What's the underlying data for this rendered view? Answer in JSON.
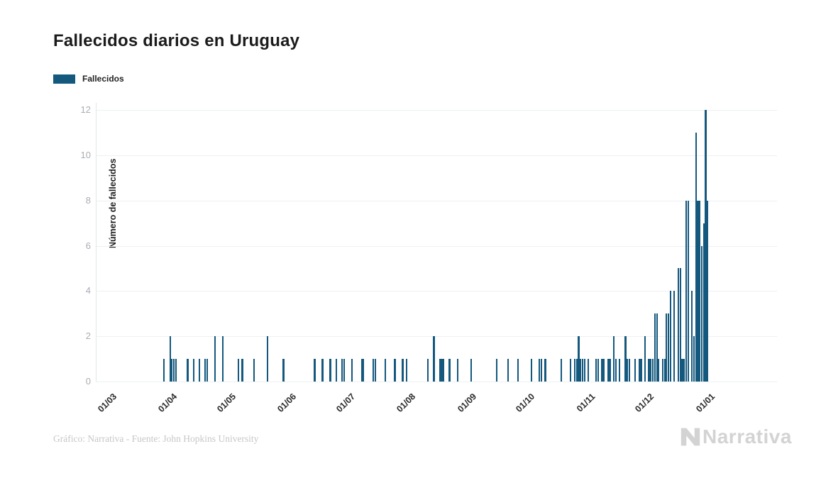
{
  "header": {
    "title": "Fallecidos diarios en Uruguay"
  },
  "legend": {
    "items": [
      {
        "label": "Fallecidos",
        "color": "#14587E"
      }
    ]
  },
  "footer": {
    "credit": "Gráfico: Narrativa - Fuente: John Hopkins University",
    "brand": "Narrativa",
    "brand_color": "#d3d3d3"
  },
  "chart_data": {
    "type": "bar",
    "title": "Fallecidos diarios en Uruguay",
    "series_name": "Fallecidos",
    "xlabel": "",
    "ylabel": "Número de fallecidos",
    "bar_color": "#14587E",
    "grid": "horizontal",
    "ylim": [
      0,
      12
    ],
    "y_ticks": [
      0,
      2,
      4,
      6,
      8,
      10,
      12
    ],
    "x_tick_labels": [
      "01/03",
      "01/04",
      "01/05",
      "01/06",
      "01/07",
      "01/08",
      "01/09",
      "01/10",
      "01/11",
      "01/12",
      "01/01"
    ],
    "x_tick_dates": [
      "2020-03-01",
      "2020-04-01",
      "2020-05-01",
      "2020-06-01",
      "2020-07-01",
      "2020-08-01",
      "2020-09-01",
      "2020-10-01",
      "2020-11-01",
      "2020-12-01",
      "2021-01-01"
    ],
    "note": "Daily COVID-19 deaths in Uruguay; days not listed have value 0",
    "points": [
      {
        "date": "2020-03-28",
        "value": 1
      },
      {
        "date": "2020-03-31",
        "value": 2
      },
      {
        "date": "2020-04-01",
        "value": 1
      },
      {
        "date": "2020-04-02",
        "value": 1
      },
      {
        "date": "2020-04-03",
        "value": 1
      },
      {
        "date": "2020-04-09",
        "value": 1
      },
      {
        "date": "2020-04-12",
        "value": 1
      },
      {
        "date": "2020-04-15",
        "value": 1
      },
      {
        "date": "2020-04-18",
        "value": 1
      },
      {
        "date": "2020-04-19",
        "value": 1
      },
      {
        "date": "2020-04-23",
        "value": 2
      },
      {
        "date": "2020-04-27",
        "value": 2
      },
      {
        "date": "2020-05-05",
        "value": 1
      },
      {
        "date": "2020-05-07",
        "value": 1
      },
      {
        "date": "2020-05-13",
        "value": 1
      },
      {
        "date": "2020-05-20",
        "value": 2
      },
      {
        "date": "2020-05-28",
        "value": 1
      },
      {
        "date": "2020-06-13",
        "value": 1
      },
      {
        "date": "2020-06-17",
        "value": 1
      },
      {
        "date": "2020-06-21",
        "value": 1
      },
      {
        "date": "2020-06-24",
        "value": 1
      },
      {
        "date": "2020-06-27",
        "value": 1
      },
      {
        "date": "2020-06-28",
        "value": 1
      },
      {
        "date": "2020-07-02",
        "value": 1
      },
      {
        "date": "2020-07-07",
        "value": 1
      },
      {
        "date": "2020-07-08",
        "value": 1
      },
      {
        "date": "2020-07-13",
        "value": 1
      },
      {
        "date": "2020-07-14",
        "value": 1
      },
      {
        "date": "2020-07-19",
        "value": 1
      },
      {
        "date": "2020-07-24",
        "value": 1
      },
      {
        "date": "2020-07-28",
        "value": 1
      },
      {
        "date": "2020-07-30",
        "value": 1
      },
      {
        "date": "2020-08-10",
        "value": 1
      },
      {
        "date": "2020-08-13",
        "value": 2
      },
      {
        "date": "2020-08-16",
        "value": 1
      },
      {
        "date": "2020-08-17",
        "value": 1
      },
      {
        "date": "2020-08-18",
        "value": 1
      },
      {
        "date": "2020-08-21",
        "value": 1
      },
      {
        "date": "2020-08-25",
        "value": 1
      },
      {
        "date": "2020-09-01",
        "value": 1
      },
      {
        "date": "2020-09-14",
        "value": 1
      },
      {
        "date": "2020-09-20",
        "value": 1
      },
      {
        "date": "2020-09-25",
        "value": 1
      },
      {
        "date": "2020-10-02",
        "value": 1
      },
      {
        "date": "2020-10-06",
        "value": 1
      },
      {
        "date": "2020-10-07",
        "value": 1
      },
      {
        "date": "2020-10-09",
        "value": 1
      },
      {
        "date": "2020-10-17",
        "value": 1
      },
      {
        "date": "2020-10-22",
        "value": 1
      },
      {
        "date": "2020-10-24",
        "value": 1
      },
      {
        "date": "2020-10-25",
        "value": 1
      },
      {
        "date": "2020-10-26",
        "value": 2
      },
      {
        "date": "2020-10-27",
        "value": 1
      },
      {
        "date": "2020-10-28",
        "value": 1
      },
      {
        "date": "2020-10-29",
        "value": 1
      },
      {
        "date": "2020-10-31",
        "value": 1
      },
      {
        "date": "2020-11-04",
        "value": 1
      },
      {
        "date": "2020-11-05",
        "value": 1
      },
      {
        "date": "2020-11-07",
        "value": 1
      },
      {
        "date": "2020-11-08",
        "value": 1
      },
      {
        "date": "2020-11-10",
        "value": 1
      },
      {
        "date": "2020-11-11",
        "value": 1
      },
      {
        "date": "2020-11-13",
        "value": 2
      },
      {
        "date": "2020-11-14",
        "value": 1
      },
      {
        "date": "2020-11-16",
        "value": 1
      },
      {
        "date": "2020-11-19",
        "value": 2
      },
      {
        "date": "2020-11-20",
        "value": 1
      },
      {
        "date": "2020-11-21",
        "value": 1
      },
      {
        "date": "2020-11-24",
        "value": 1
      },
      {
        "date": "2020-11-26",
        "value": 1
      },
      {
        "date": "2020-11-27",
        "value": 1
      },
      {
        "date": "2020-11-29",
        "value": 2
      },
      {
        "date": "2020-12-01",
        "value": 1
      },
      {
        "date": "2020-12-02",
        "value": 1
      },
      {
        "date": "2020-12-03",
        "value": 1
      },
      {
        "date": "2020-12-04",
        "value": 3
      },
      {
        "date": "2020-12-05",
        "value": 3
      },
      {
        "date": "2020-12-06",
        "value": 1
      },
      {
        "date": "2020-12-08",
        "value": 1
      },
      {
        "date": "2020-12-09",
        "value": 1
      },
      {
        "date": "2020-12-10",
        "value": 3
      },
      {
        "date": "2020-12-11",
        "value": 3
      },
      {
        "date": "2020-12-12",
        "value": 4
      },
      {
        "date": "2020-12-14",
        "value": 4
      },
      {
        "date": "2020-12-16",
        "value": 5
      },
      {
        "date": "2020-12-17",
        "value": 5
      },
      {
        "date": "2020-12-18",
        "value": 1
      },
      {
        "date": "2020-12-19",
        "value": 1
      },
      {
        "date": "2020-12-20",
        "value": 8
      },
      {
        "date": "2020-12-21",
        "value": 8
      },
      {
        "date": "2020-12-23",
        "value": 4
      },
      {
        "date": "2020-12-24",
        "value": 2
      },
      {
        "date": "2020-12-25",
        "value": 11
      },
      {
        "date": "2020-12-26",
        "value": 8
      },
      {
        "date": "2020-12-27",
        "value": 8
      },
      {
        "date": "2020-12-28",
        "value": 6
      },
      {
        "date": "2020-12-29",
        "value": 7
      },
      {
        "date": "2020-12-30",
        "value": 12
      },
      {
        "date": "2020-12-31",
        "value": 8
      }
    ]
  }
}
